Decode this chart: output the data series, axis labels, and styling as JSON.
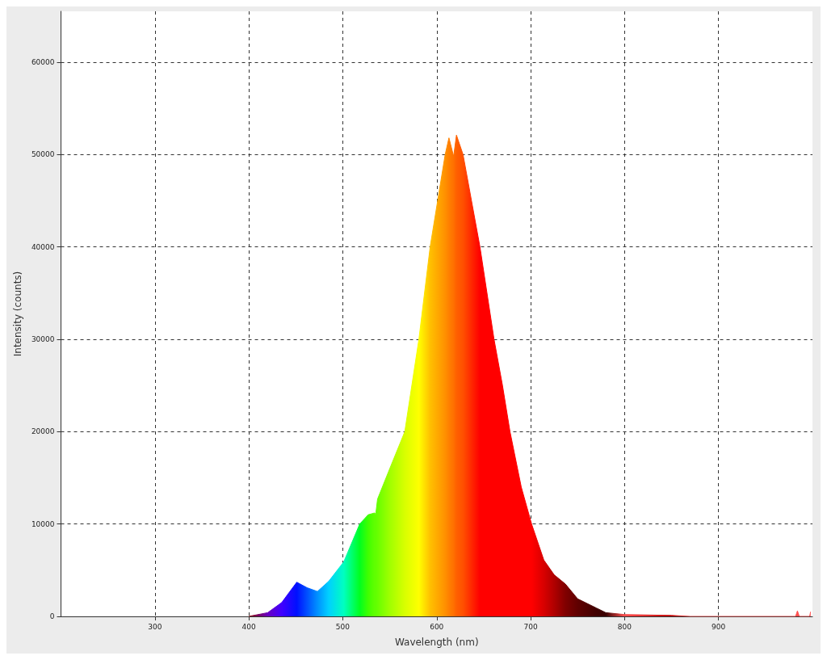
{
  "chart_data": {
    "type": "area",
    "xlabel": "Wavelength (nm)",
    "ylabel": "Intensity (counts)",
    "xlim": [
      200,
      1000
    ],
    "xticks": [
      300,
      400,
      500,
      600,
      700,
      800,
      900
    ],
    "ylim": [
      0,
      65500
    ],
    "yticks": [
      0,
      10000,
      20000,
      30000,
      40000,
      50000,
      60000
    ],
    "grid": true,
    "series": [
      {
        "x": [
          400,
          420,
          435,
          451,
          462,
          473,
          485,
          501,
          518,
          527,
          534,
          535,
          537,
          550,
          566,
          581,
          593,
          609,
          613,
          618,
          621,
          628,
          637,
          646,
          661,
          670,
          678,
          690,
          701,
          714,
          725,
          737,
          750,
          770,
          780,
          800,
          850,
          870,
          982,
          984,
          986,
          997,
          998
        ],
        "values": [
          0,
          400,
          1500,
          3700,
          3100,
          2700,
          3800,
          5900,
          10000,
          11000,
          11200,
          11000,
          12700,
          16000,
          20000,
          30000,
          40000,
          50000,
          51800,
          49800,
          52100,
          50000,
          45000,
          40000,
          30000,
          25000,
          20000,
          14000,
          10000,
          6100,
          4500,
          3500,
          1900,
          900,
          400,
          200,
          100,
          0,
          0,
          600,
          0,
          0,
          500
        ],
        "colors": [
          "#8b0000",
          "#6a00c0",
          "#4000ff",
          "#0010ff",
          "#0050ff",
          "#0090ff",
          "#00d0ff",
          "#00ffc0",
          "#00ff20",
          "#40ff00",
          "#60ff00",
          "#60ff00",
          "#68ff00",
          "#a0ff00",
          "#d8ff00",
          "#ffff00",
          "#ffc000",
          "#ff9000",
          "#ff8000",
          "#ff7000",
          "#ff6000",
          "#ff5000",
          "#ff2800",
          "#ff0000",
          "#ff0000",
          "#ff0000",
          "#ff0000",
          "#ff0000",
          "#ff0000",
          "#d80000",
          "#b00000",
          "#800000",
          "#600000",
          "#400000",
          "#3a0000",
          "#ff5050",
          "#c00000",
          "#ff5050",
          "#ff5050",
          "#ff5050",
          "#ff5050",
          "#ff5050",
          "#ff5050"
        ]
      }
    ]
  }
}
